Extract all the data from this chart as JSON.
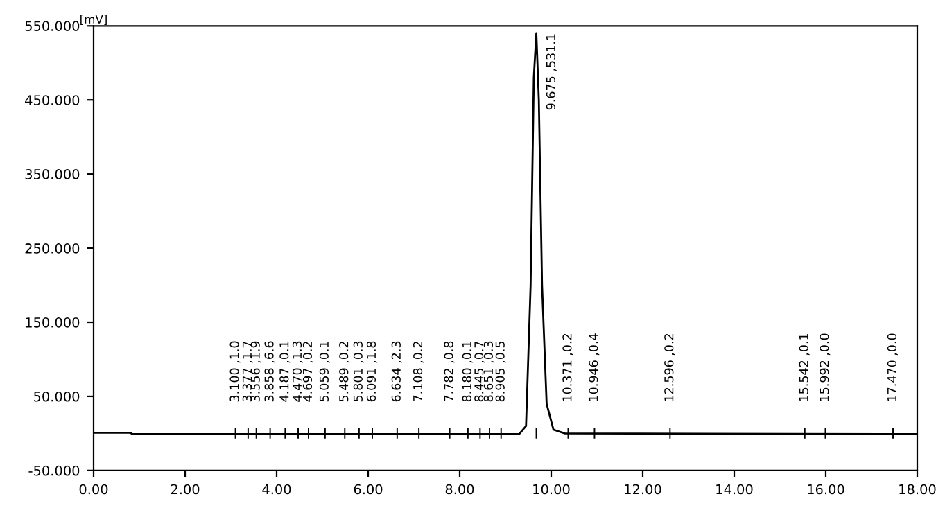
{
  "chart_data": {
    "type": "line",
    "ylabel": "[mV]",
    "series": [
      {
        "color": "#000000",
        "x": [
          0,
          0.8,
          0.85,
          3.0,
          9.3,
          9.45,
          9.55,
          9.62,
          9.675,
          9.73,
          9.8,
          9.9,
          10.05,
          10.3,
          18
        ],
        "values": [
          1,
          1,
          -1,
          -1,
          -1,
          10,
          200,
          480,
          540,
          450,
          200,
          40,
          5,
          0,
          -1
        ]
      }
    ],
    "xlim": [
      0,
      18
    ],
    "ylim": [
      -50,
      550
    ],
    "xticks": [
      {
        "value": 0,
        "label": "0.00"
      },
      {
        "value": 2,
        "label": "2.00"
      },
      {
        "value": 4,
        "label": "4.00"
      },
      {
        "value": 6,
        "label": "6.00"
      },
      {
        "value": 8,
        "label": "8.00"
      },
      {
        "value": 10,
        "label": "10.00"
      },
      {
        "value": 12,
        "label": "12.00"
      },
      {
        "value": 14,
        "label": "14.00"
      },
      {
        "value": 16,
        "label": "16.00"
      },
      {
        "value": 18,
        "label": "18.00"
      }
    ],
    "yticks": [
      {
        "value": -50,
        "label": "-50.000"
      },
      {
        "value": 50,
        "label": "50.000"
      },
      {
        "value": 150,
        "label": "150.000"
      },
      {
        "value": 250,
        "label": "250.000"
      },
      {
        "value": 350,
        "label": "350.000"
      },
      {
        "value": 450,
        "label": "450.000"
      },
      {
        "value": 550,
        "label": "550.000"
      }
    ],
    "grid": false,
    "legend": false,
    "annotations": [
      {
        "text": "3.100 ,1.0",
        "x": 3.1,
        "y": 0
      },
      {
        "text": "3.377 ,1.7",
        "x": 3.377,
        "y": 0
      },
      {
        "text": "3.556 ,1.9",
        "x": 3.556,
        "y": 0
      },
      {
        "text": "3.858 ,6.6",
        "x": 3.858,
        "y": 0
      },
      {
        "text": "4.187 ,0.1",
        "x": 4.187,
        "y": 0
      },
      {
        "text": "4.470 ,1.3",
        "x": 4.47,
        "y": 0
      },
      {
        "text": "4.697 ,0.2",
        "x": 4.697,
        "y": 0
      },
      {
        "text": "5.059 ,0.1",
        "x": 5.059,
        "y": 0
      },
      {
        "text": "5.489 ,0.2",
        "x": 5.489,
        "y": 0
      },
      {
        "text": "5.801 ,0.3",
        "x": 5.801,
        "y": 0
      },
      {
        "text": "6.091 ,1.8",
        "x": 6.091,
        "y": 0
      },
      {
        "text": "6.634 ,2.3",
        "x": 6.634,
        "y": 0
      },
      {
        "text": "7.108 ,0.2",
        "x": 7.108,
        "y": 0
      },
      {
        "text": "7.782 ,0.8",
        "x": 7.782,
        "y": 0
      },
      {
        "text": "8.180 ,0.1",
        "x": 8.18,
        "y": 0
      },
      {
        "text": "8.445 ,0.7",
        "x": 8.445,
        "y": 0
      },
      {
        "text": "8.651 ,0.3",
        "x": 8.651,
        "y": 0
      },
      {
        "text": "8.905 ,0.5",
        "x": 8.905,
        "y": 0
      },
      {
        "text": "9.675 ,531.1",
        "x": 9.675,
        "y": 540
      },
      {
        "text": "10.371 ,0.2",
        "x": 10.371,
        "y": 0
      },
      {
        "text": "10.946 ,0.4",
        "x": 10.946,
        "y": 0
      },
      {
        "text": "12.596 ,0.2",
        "x": 12.596,
        "y": 0
      },
      {
        "text": "15.542 ,0.1",
        "x": 15.542,
        "y": 0
      },
      {
        "text": "15.992 ,0.0",
        "x": 15.992,
        "y": 0
      },
      {
        "text": "17.470 ,0.0",
        "x": 17.47,
        "y": 0
      }
    ]
  }
}
